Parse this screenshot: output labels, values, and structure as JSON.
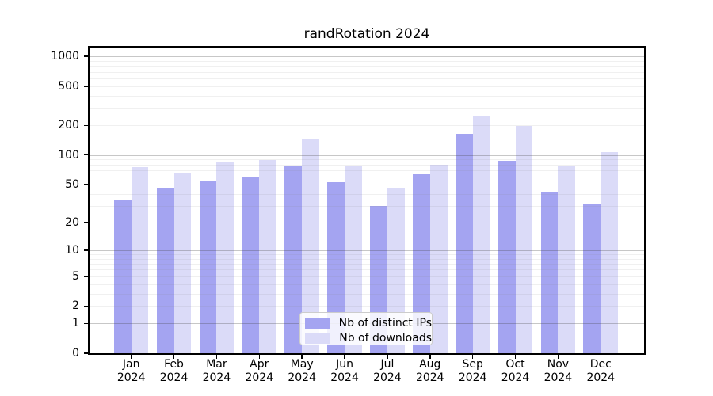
{
  "chart_data": {
    "type": "bar",
    "title": "randRotation 2024",
    "categories": [
      "Jan",
      "Feb",
      "Mar",
      "Apr",
      "May",
      "Jun",
      "Jul",
      "Aug",
      "Sep",
      "Oct",
      "Nov",
      "Dec"
    ],
    "x_tick_year": "2024",
    "series": [
      {
        "name": "Nb of distinct IPs",
        "color": "#a4a4f1",
        "values": [
          35,
          46,
          54,
          59,
          78,
          53,
          30,
          63,
          165,
          88,
          42,
          31
        ]
      },
      {
        "name": "Nb of downloads",
        "color": "#dbdbf8",
        "values": [
          75,
          66,
          86,
          89,
          143,
          78,
          45,
          80,
          253,
          197,
          78,
          107
        ]
      }
    ],
    "y_ticks": [
      0,
      1,
      2,
      5,
      10,
      20,
      50,
      100,
      200,
      500,
      1000
    ],
    "y_scale": "log1p",
    "ylim": [
      0,
      1230
    ],
    "grid": true,
    "legend_position": "bottom-center"
  },
  "colors": {
    "background": "#ffffff",
    "axis": "#000000",
    "grid_major": "rgba(70,70,70,0.30)",
    "grid_minor": "rgba(140,140,140,0.13)",
    "legend_background": "rgba(255,255,255,0.85)",
    "legend_border": "#cccccc",
    "text": "#000000"
  }
}
